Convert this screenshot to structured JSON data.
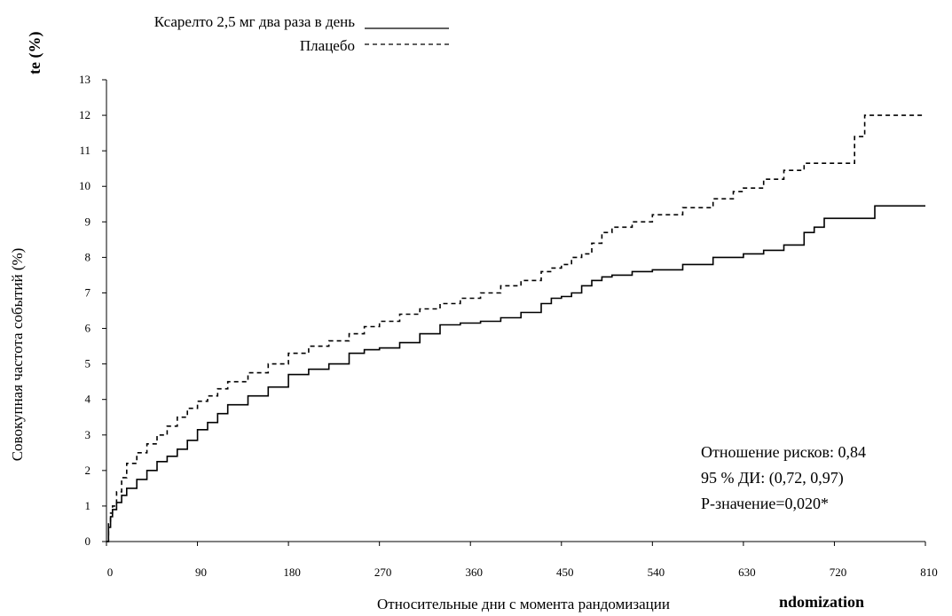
{
  "chart_data": {
    "type": "line",
    "title": "",
    "xlabel": "Относительные дни с момента рандомизации",
    "ylabel": "Совокупная частота событий (%)",
    "xlim": [
      0,
      810
    ],
    "ylim": [
      0,
      13
    ],
    "x_ticks": [
      "0",
      "90",
      "180",
      "270",
      "360",
      "450",
      "540",
      "630",
      "720",
      "810"
    ],
    "y_ticks": [
      "0",
      "1",
      "2",
      "3",
      "4",
      "5",
      "6",
      "7",
      "8",
      "9",
      "10",
      "11",
      "12",
      "13"
    ],
    "grid": false,
    "legend_position": "top-left, above plot",
    "artifact_labels": [
      "te (%)",
      "ndomization"
    ],
    "series": [
      {
        "name": "Ксарелто 2,5 мг два раза в день",
        "style": "solid",
        "color": "#000000",
        "x": [
          0,
          2,
          4,
          6,
          10,
          15,
          20,
          30,
          40,
          50,
          60,
          70,
          80,
          90,
          100,
          110,
          120,
          140,
          160,
          180,
          200,
          220,
          240,
          255,
          270,
          290,
          310,
          330,
          350,
          370,
          390,
          410,
          430,
          440,
          450,
          460,
          470,
          480,
          490,
          500,
          520,
          540,
          570,
          600,
          620,
          630,
          650,
          670,
          690,
          700,
          710,
          730,
          750,
          760,
          810
        ],
        "y": [
          0,
          0.4,
          0.7,
          0.9,
          1.1,
          1.3,
          1.5,
          1.75,
          2.0,
          2.25,
          2.4,
          2.6,
          2.85,
          3.15,
          3.35,
          3.6,
          3.85,
          4.1,
          4.35,
          4.7,
          4.85,
          5.0,
          5.3,
          5.4,
          5.45,
          5.6,
          5.85,
          6.1,
          6.15,
          6.2,
          6.3,
          6.45,
          6.7,
          6.85,
          6.9,
          7.0,
          7.2,
          7.35,
          7.45,
          7.5,
          7.6,
          7.65,
          7.8,
          8.0,
          8.0,
          8.1,
          8.2,
          8.35,
          8.7,
          8.85,
          9.1,
          9.1,
          9.1,
          9.45,
          9.45
        ]
      },
      {
        "name": "Плацебо",
        "style": "dashed",
        "color": "#000000",
        "x": [
          0,
          2,
          4,
          6,
          10,
          15,
          20,
          30,
          40,
          50,
          60,
          70,
          80,
          90,
          100,
          110,
          120,
          140,
          160,
          180,
          200,
          220,
          240,
          255,
          270,
          290,
          310,
          330,
          350,
          370,
          390,
          410,
          430,
          440,
          450,
          460,
          470,
          480,
          490,
          500,
          520,
          540,
          570,
          600,
          620,
          630,
          650,
          670,
          690,
          700,
          710,
          730,
          740,
          750,
          810
        ],
        "y": [
          0,
          0.5,
          0.8,
          1.0,
          1.4,
          1.8,
          2.2,
          2.5,
          2.75,
          3.0,
          3.25,
          3.5,
          3.75,
          3.95,
          4.1,
          4.3,
          4.5,
          4.75,
          5.0,
          5.3,
          5.5,
          5.65,
          5.85,
          6.05,
          6.2,
          6.4,
          6.55,
          6.7,
          6.85,
          7.0,
          7.2,
          7.35,
          7.6,
          7.7,
          7.8,
          8.0,
          8.1,
          8.4,
          8.7,
          8.85,
          9.0,
          9.2,
          9.4,
          9.65,
          9.85,
          9.95,
          10.2,
          10.45,
          10.65,
          10.65,
          10.65,
          10.65,
          11.4,
          12.0,
          12.0
        ]
      }
    ],
    "annotations": [
      "Отношение рисков: 0,84",
      "95 % ДИ: (0,72, 0,97)",
      "P-значение=0,020*"
    ]
  }
}
